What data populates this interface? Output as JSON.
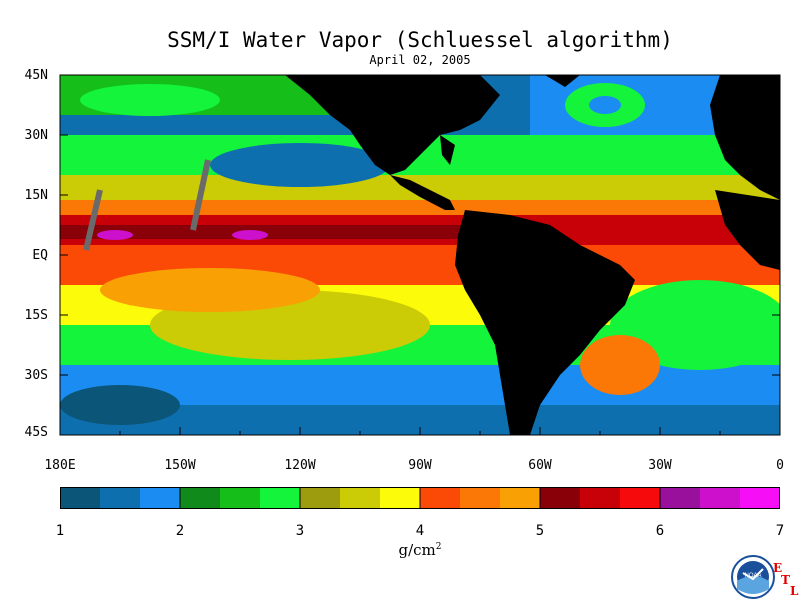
{
  "title": "SSM/I Water Vapor (Schluessel algorithm)",
  "date": "April 02, 2005",
  "lat_labels": [
    "45N",
    "30N",
    "15N",
    "EQ",
    "15S",
    "30S",
    "45S"
  ],
  "lon_labels": [
    "180E",
    "150W",
    "120W",
    "90W",
    "60W",
    "30W",
    "0"
  ],
  "colorbar": {
    "colors": [
      "#0b5578",
      "#0e6fae",
      "#1a8cf2",
      "#118a1c",
      "#16be19",
      "#14f43b",
      "#9c9c0e",
      "#cbcb06",
      "#fbfb0a",
      "#fb4a06",
      "#fb7806",
      "#f9a005",
      "#8a0008",
      "#c80008",
      "#f70a0b",
      "#99109c",
      "#cc10cc",
      "#f60ef6"
    ],
    "tick_labels": [
      "1",
      "2",
      "3",
      "4",
      "5",
      "6",
      "7"
    ],
    "unit": "g/cm",
    "unit_exp": "2"
  },
  "colors": {
    "land": "#000000",
    "track_gap": "#6a6a6a"
  },
  "logo": {
    "text": "NOAA",
    "side_letters": [
      "E",
      "T",
      "L"
    ]
  }
}
